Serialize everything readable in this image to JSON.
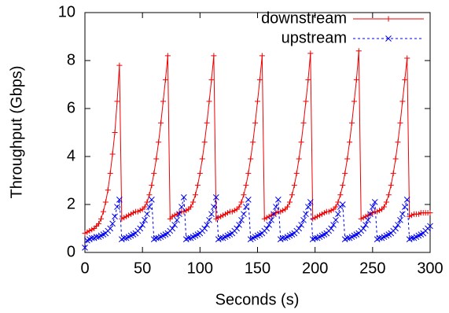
{
  "chart_data": {
    "type": "line",
    "xlabel": "Seconds (s)",
    "ylabel": "Throughput (Gbps)",
    "x": [
      0,
      2,
      4,
      6,
      8,
      10,
      12,
      14,
      16,
      18,
      20,
      22,
      24,
      26,
      28,
      30,
      32,
      34,
      36,
      38,
      40,
      42,
      44,
      46,
      48,
      50,
      52,
      54,
      56,
      58,
      60,
      62,
      64,
      66,
      68,
      70,
      72,
      74,
      76,
      78,
      80,
      82,
      84,
      86,
      88,
      90,
      92,
      94,
      96,
      98,
      100,
      102,
      104,
      106,
      108,
      110,
      112,
      114,
      116,
      118,
      120,
      122,
      124,
      126,
      128,
      130,
      132,
      134,
      136,
      138,
      140,
      142,
      144,
      146,
      148,
      150,
      152,
      154,
      156,
      158,
      160,
      162,
      164,
      166,
      168,
      170,
      172,
      174,
      176,
      178,
      180,
      182,
      184,
      186,
      188,
      190,
      192,
      194,
      196,
      198,
      200,
      202,
      204,
      206,
      208,
      210,
      212,
      214,
      216,
      218,
      220,
      222,
      224,
      226,
      228,
      230,
      232,
      234,
      236,
      238,
      240,
      242,
      244,
      246,
      248,
      250,
      252,
      254,
      256,
      258,
      260,
      262,
      264,
      266,
      268,
      270,
      272,
      274,
      276,
      278,
      280,
      282,
      284,
      286,
      288,
      290,
      292,
      294,
      296,
      298,
      300
    ],
    "series": [
      {
        "name": "downstream",
        "color": "#ee0000",
        "marker": "plus",
        "dash": false,
        "values": [
          0.8,
          0.85,
          0.9,
          0.95,
          1.0,
          1.1,
          1.2,
          1.4,
          1.7,
          2.1,
          2.6,
          3.3,
          4.1,
          5.0,
          6.3,
          7.8,
          1.4,
          1.45,
          1.5,
          1.55,
          1.6,
          1.65,
          1.7,
          1.7,
          1.75,
          1.8,
          1.9,
          2.1,
          2.4,
          2.8,
          3.3,
          3.9,
          4.6,
          5.4,
          6.3,
          7.2,
          8.2,
          1.4,
          1.5,
          1.55,
          1.6,
          1.65,
          1.7,
          1.7,
          1.75,
          1.8,
          1.9,
          2.1,
          2.4,
          2.8,
          3.3,
          3.9,
          4.6,
          5.4,
          6.3,
          7.2,
          8.2,
          1.4,
          1.45,
          1.5,
          1.55,
          1.6,
          1.65,
          1.7,
          1.7,
          1.75,
          1.8,
          1.9,
          2.1,
          2.4,
          2.8,
          3.3,
          3.9,
          4.6,
          5.4,
          6.3,
          7.2,
          8.2,
          1.4,
          1.45,
          1.5,
          1.55,
          1.6,
          1.65,
          1.7,
          1.7,
          1.75,
          1.8,
          1.9,
          2.1,
          2.4,
          2.8,
          3.3,
          3.9,
          4.6,
          5.4,
          6.3,
          7.2,
          8.3,
          1.4,
          1.45,
          1.5,
          1.55,
          1.6,
          1.65,
          1.7,
          1.7,
          1.75,
          1.8,
          1.9,
          2.1,
          2.4,
          2.8,
          3.3,
          3.9,
          4.6,
          5.4,
          6.3,
          7.2,
          8.4,
          1.4,
          1.45,
          1.5,
          1.55,
          1.6,
          1.65,
          1.7,
          1.7,
          1.75,
          1.8,
          1.9,
          2.1,
          2.4,
          2.8,
          3.3,
          3.9,
          4.6,
          5.4,
          6.3,
          7.2,
          8.1,
          1.5,
          1.55,
          1.6,
          1.6,
          1.6,
          1.65,
          1.65,
          1.65,
          1.65,
          1.65
        ]
      },
      {
        "name": "upstream",
        "color": "#0000ee",
        "marker": "cross",
        "dash": true,
        "values": [
          0.2,
          0.5,
          0.55,
          0.6,
          0.6,
          0.65,
          0.65,
          0.7,
          0.75,
          0.8,
          0.9,
          1.0,
          1.2,
          1.5,
          1.9,
          2.2,
          0.55,
          0.6,
          0.6,
          0.65,
          0.7,
          0.75,
          0.8,
          0.9,
          1.0,
          1.15,
          1.35,
          1.6,
          1.9,
          2.2,
          0.55,
          0.6,
          0.6,
          0.65,
          0.7,
          0.75,
          0.8,
          0.9,
          1.0,
          1.15,
          1.35,
          1.6,
          1.9,
          2.3,
          0.55,
          0.6,
          0.6,
          0.65,
          0.7,
          0.75,
          0.8,
          0.9,
          1.0,
          1.15,
          1.35,
          1.6,
          1.9,
          2.3,
          0.55,
          0.6,
          0.6,
          0.65,
          0.7,
          0.75,
          0.8,
          0.9,
          1.0,
          1.15,
          1.35,
          1.6,
          1.9,
          2.2,
          0.55,
          0.6,
          0.65,
          0.7,
          0.75,
          0.8,
          0.9,
          1.0,
          1.15,
          1.35,
          1.6,
          1.9,
          2.2,
          0.55,
          0.6,
          0.6,
          0.65,
          0.7,
          0.75,
          0.8,
          0.9,
          1.0,
          1.15,
          1.35,
          1.6,
          1.9,
          2.1,
          0.55,
          0.6,
          0.6,
          0.65,
          0.7,
          0.75,
          0.8,
          0.9,
          1.0,
          1.15,
          1.35,
          1.6,
          1.9,
          2.0,
          0.55,
          0.6,
          0.6,
          0.65,
          0.7,
          0.75,
          0.8,
          0.9,
          1.0,
          1.15,
          1.35,
          1.6,
          1.9,
          2.1,
          0.55,
          0.6,
          0.6,
          0.65,
          0.7,
          0.75,
          0.8,
          0.9,
          1.0,
          1.15,
          1.35,
          1.6,
          1.9,
          2.2,
          0.55,
          0.6,
          0.6,
          0.65,
          0.7,
          0.75,
          0.8,
          0.9,
          1.0,
          1.1
        ]
      }
    ],
    "xlim": [
      0,
      300
    ],
    "xticks": [
      0,
      50,
      100,
      150,
      200,
      250,
      300
    ],
    "ylim": [
      0,
      10
    ],
    "yticks": [
      0,
      2,
      4,
      6,
      8,
      10
    ],
    "grid": false,
    "legend": "top-right"
  }
}
